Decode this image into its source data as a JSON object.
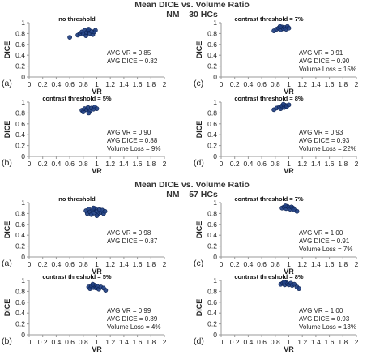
{
  "sections": [
    {
      "title_line1": "Mean DICE vs. Volume Ratio",
      "title_line2": "NM – 30 HCs",
      "panels": [
        {
          "label": "(a)",
          "title": "no threshold",
          "stats": [
            "AVG VR = 0.85",
            "AVG DICE = 0.82"
          ]
        },
        {
          "label": "(c)",
          "title": "contrast threshold = 7%",
          "stats": [
            "AVG VR = 0.91",
            "AVG DICE = 0.90",
            "Volume Loss = 15%"
          ]
        },
        {
          "label": "(b)",
          "title": "contrast threshold = 5%",
          "stats": [
            "AVG VR = 0.90",
            "AVG DICE = 0.88",
            "Volume Loss = 9%"
          ]
        },
        {
          "label": "(d)",
          "title": "contrast threshold = 8%",
          "stats": [
            "AVG VR = 0.93",
            "AVG DICE = 0.93",
            "Volume Loss = 22%"
          ]
        }
      ]
    },
    {
      "title_line1": "Mean DICE vs. Volume Ratio",
      "title_line2": "NM – 57 HCs",
      "panels": [
        {
          "label": "(a)",
          "title": "no threshold",
          "stats": [
            "AVG VR = 0.98",
            "AVG DICE = 0.87"
          ]
        },
        {
          "label": "(c)",
          "title": "contrast threshold = 7%",
          "stats": [
            "AVG VR = 1.00",
            "AVG DICE = 0.91",
            "Volume Loss = 7%"
          ]
        },
        {
          "label": "(b)",
          "title": "contrast threshold = 5%",
          "stats": [
            "AVG VR = 0.99",
            "AVG DICE = 0.89",
            "Volume Loss = 4%"
          ]
        },
        {
          "label": "(d)",
          "title": "contrast threshold = 8%",
          "stats": [
            "AVG VR = 1.00",
            "AVG DICE = 0.93",
            "Volume Loss = 13%"
          ]
        }
      ]
    }
  ],
  "chart_data": [
    {
      "type": "scatter",
      "title": "no threshold",
      "xlabel": "VR",
      "ylabel": "DICE",
      "xlim": [
        0,
        2
      ],
      "ylim": [
        0,
        1
      ],
      "xticks": [
        "0",
        "0.2",
        "0.4",
        "0.6",
        "0.8",
        "1",
        "1.2",
        "1.4",
        "1.6",
        "1.8",
        "2"
      ],
      "yticks": [
        "0",
        "0.2",
        "0.4",
        "0.6",
        "0.8",
        "1"
      ],
      "points": [
        [
          0.6,
          0.73
        ],
        [
          0.72,
          0.77
        ],
        [
          0.75,
          0.8
        ],
        [
          0.78,
          0.83
        ],
        [
          0.8,
          0.79
        ],
        [
          0.82,
          0.86
        ],
        [
          0.84,
          0.76
        ],
        [
          0.85,
          0.82
        ],
        [
          0.87,
          0.85
        ],
        [
          0.9,
          0.8
        ],
        [
          0.92,
          0.84
        ],
        [
          0.94,
          0.78
        ],
        [
          0.96,
          0.83
        ],
        [
          0.98,
          0.86
        ],
        [
          0.88,
          0.88
        ]
      ],
      "annotations": [
        "AVG VR = 0.85",
        "AVG DICE = 0.82"
      ]
    },
    {
      "type": "scatter",
      "title": "contrast threshold = 7%",
      "xlabel": "VR",
      "ylabel": "DICE",
      "xlim": [
        0,
        2
      ],
      "ylim": [
        0,
        1
      ],
      "xticks": [
        "0",
        "0.2",
        "0.4",
        "0.6",
        "0.8",
        "1",
        "1.2",
        "1.4",
        "1.6",
        "1.8",
        "2"
      ],
      "yticks": [
        "0",
        "0.2",
        "0.4",
        "0.6",
        "0.8",
        "1"
      ],
      "points": [
        [
          0.78,
          0.85
        ],
        [
          0.82,
          0.88
        ],
        [
          0.85,
          0.9
        ],
        [
          0.88,
          0.87
        ],
        [
          0.9,
          0.92
        ],
        [
          0.92,
          0.89
        ],
        [
          0.94,
          0.91
        ],
        [
          0.96,
          0.88
        ],
        [
          0.98,
          0.93
        ],
        [
          1.0,
          0.9
        ],
        [
          0.87,
          0.93
        ]
      ],
      "annotations": [
        "AVG VR = 0.91",
        "AVG DICE = 0.90",
        "Volume Loss = 15%"
      ]
    },
    {
      "type": "scatter",
      "title": "contrast threshold = 5%",
      "xlabel": "VR",
      "ylabel": "DICE",
      "xlim": [
        0,
        2
      ],
      "ylim": [
        0,
        1
      ],
      "xticks": [
        "0",
        "0.2",
        "0.4",
        "0.6",
        "0.8",
        "1",
        "1.2",
        "1.4",
        "1.6",
        "1.8",
        "2"
      ],
      "yticks": [
        "0",
        "0.2",
        "0.4",
        "0.6",
        "0.8",
        "1"
      ],
      "points": [
        [
          0.78,
          0.85
        ],
        [
          0.8,
          0.82
        ],
        [
          0.82,
          0.88
        ],
        [
          0.85,
          0.86
        ],
        [
          0.87,
          0.9
        ],
        [
          0.9,
          0.84
        ],
        [
          0.92,
          0.89
        ],
        [
          0.95,
          0.87
        ],
        [
          0.97,
          0.91
        ],
        [
          1.0,
          0.88
        ],
        [
          0.88,
          0.8
        ]
      ],
      "annotations": [
        "AVG VR = 0.90",
        "AVG DICE = 0.88",
        "Volume Loss = 9%"
      ]
    },
    {
      "type": "scatter",
      "title": "contrast threshold = 8%",
      "xlabel": "VR",
      "ylabel": "DICE",
      "xlim": [
        0,
        2
      ],
      "ylim": [
        0,
        1
      ],
      "xticks": [
        "0",
        "0.2",
        "0.4",
        "0.6",
        "0.8",
        "1",
        "1.2",
        "1.4",
        "1.6",
        "1.8",
        "2"
      ],
      "yticks": [
        "0",
        "0.2",
        "0.4",
        "0.6",
        "0.8",
        "1"
      ],
      "points": [
        [
          0.78,
          0.86
        ],
        [
          0.82,
          0.89
        ],
        [
          0.86,
          0.91
        ],
        [
          0.88,
          0.88
        ],
        [
          0.9,
          0.93
        ],
        [
          0.93,
          0.9
        ],
        [
          0.95,
          0.94
        ],
        [
          0.97,
          0.92
        ],
        [
          1.0,
          0.95
        ],
        [
          0.92,
          0.96
        ]
      ],
      "annotations": [
        "AVG VR = 0.93",
        "AVG DICE = 0.93",
        "Volume Loss = 22%"
      ]
    },
    {
      "type": "scatter",
      "title": "no threshold",
      "xlabel": "VR",
      "ylabel": "DICE",
      "xlim": [
        0,
        2
      ],
      "ylim": [
        0,
        1
      ],
      "xticks": [
        "0",
        "0.2",
        "0.4",
        "0.6",
        "0.8",
        "1",
        "1.2",
        "1.4",
        "1.6",
        "1.8",
        "2"
      ],
      "yticks": [
        "0",
        "0.2",
        "0.4",
        "0.6",
        "0.8",
        "1"
      ],
      "points": [
        [
          0.84,
          0.85
        ],
        [
          0.86,
          0.8
        ],
        [
          0.88,
          0.88
        ],
        [
          0.9,
          0.83
        ],
        [
          0.92,
          0.78
        ],
        [
          0.94,
          0.86
        ],
        [
          0.96,
          0.81
        ],
        [
          0.98,
          0.89
        ],
        [
          1.0,
          0.84
        ],
        [
          1.02,
          0.79
        ],
        [
          1.04,
          0.87
        ],
        [
          1.06,
          0.82
        ],
        [
          1.08,
          0.86
        ],
        [
          1.1,
          0.8
        ],
        [
          1.12,
          0.84
        ],
        [
          0.95,
          0.9
        ],
        [
          1.0,
          0.76
        ]
      ],
      "annotations": [
        "AVG VR = 0.98",
        "AVG DICE = 0.87"
      ]
    },
    {
      "type": "scatter",
      "title": "contrast threshold = 7%",
      "xlabel": "VR",
      "ylabel": "DICE",
      "xlim": [
        0,
        2
      ],
      "ylim": [
        0,
        1
      ],
      "xticks": [
        "0",
        "0.2",
        "0.4",
        "0.6",
        "0.8",
        "1",
        "1.2",
        "1.4",
        "1.6",
        "1.8",
        "2"
      ],
      "yticks": [
        "0",
        "0.2",
        "0.4",
        "0.6",
        "0.8",
        "1"
      ],
      "points": [
        [
          0.9,
          0.9
        ],
        [
          0.93,
          0.92
        ],
        [
          0.96,
          0.89
        ],
        [
          0.98,
          0.93
        ],
        [
          1.0,
          0.91
        ],
        [
          1.02,
          0.88
        ],
        [
          1.04,
          0.92
        ],
        [
          1.06,
          0.9
        ],
        [
          1.08,
          0.87
        ],
        [
          1.12,
          0.84
        ],
        [
          0.95,
          0.94
        ]
      ],
      "annotations": [
        "AVG VR = 1.00",
        "AVG DICE = 0.91",
        "Volume Loss = 7%"
      ]
    },
    {
      "type": "scatter",
      "title": "contrast threshold = 5%",
      "xlabel": "VR",
      "ylabel": "DICE",
      "xlim": [
        0,
        2
      ],
      "ylim": [
        0,
        1
      ],
      "xticks": [
        "0",
        "0.2",
        "0.4",
        "0.6",
        "0.8",
        "1",
        "1.2",
        "1.4",
        "1.6",
        "1.8",
        "2"
      ],
      "yticks": [
        "0",
        "0.2",
        "0.4",
        "0.6",
        "0.8",
        "1"
      ],
      "points": [
        [
          0.88,
          0.88
        ],
        [
          0.9,
          0.85
        ],
        [
          0.92,
          0.9
        ],
        [
          0.95,
          0.87
        ],
        [
          0.97,
          0.91
        ],
        [
          0.99,
          0.86
        ],
        [
          1.01,
          0.89
        ],
        [
          1.03,
          0.84
        ],
        [
          1.06,
          0.88
        ],
        [
          1.1,
          0.86
        ],
        [
          1.13,
          0.82
        ],
        [
          0.94,
          0.93
        ]
      ],
      "annotations": [
        "AVG VR = 0.99",
        "AVG DICE = 0.89",
        "Volume Loss = 4%"
      ]
    },
    {
      "type": "scatter",
      "title": "contrast threshold = 8%",
      "xlabel": "VR",
      "ylabel": "DICE",
      "xlim": [
        0,
        2
      ],
      "ylim": [
        0,
        1
      ],
      "xticks": [
        "0",
        "0.2",
        "0.4",
        "0.6",
        "0.8",
        "1",
        "1.2",
        "1.4",
        "1.6",
        "1.8",
        "2"
      ],
      "yticks": [
        "0",
        "0.2",
        "0.4",
        "0.6",
        "0.8",
        "1"
      ],
      "points": [
        [
          0.88,
          0.93
        ],
        [
          0.91,
          0.95
        ],
        [
          0.94,
          0.92
        ],
        [
          0.96,
          0.96
        ],
        [
          0.98,
          0.94
        ],
        [
          1.0,
          0.92
        ],
        [
          1.03,
          0.95
        ],
        [
          1.05,
          0.91
        ],
        [
          1.08,
          0.93
        ],
        [
          1.12,
          0.88
        ],
        [
          1.15,
          0.85
        ],
        [
          0.93,
          0.97
        ]
      ],
      "annotations": [
        "AVG VR = 1.00",
        "AVG DICE = 0.93",
        "Volume Loss = 13%"
      ]
    }
  ],
  "colors": {
    "marker_fill": "#1f3f82",
    "marker_stroke": "#0e2452",
    "axis": "#9a9a9a"
  }
}
